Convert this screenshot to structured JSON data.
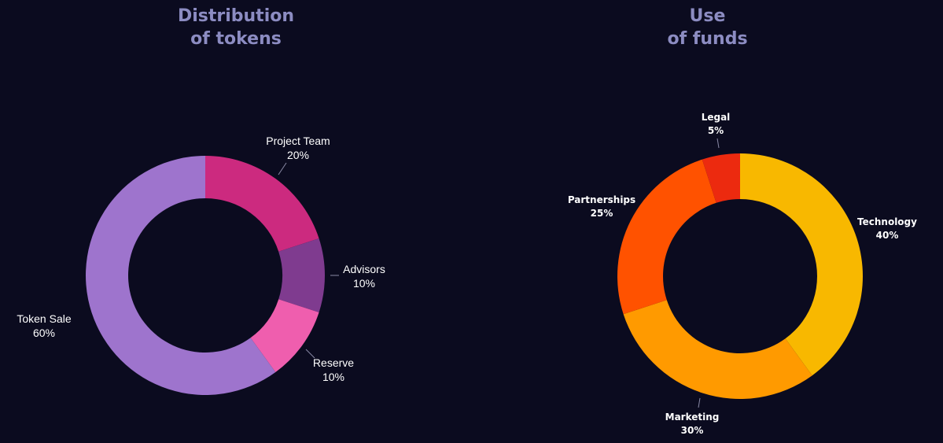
{
  "chart_data": [
    {
      "type": "pie",
      "title_lines": [
        "Distribution",
        "of tokens"
      ],
      "colors": {
        "Project Team": "#cc2a7f",
        "Advisors": "#7f3b8f",
        "Reserve": "#ef5eae",
        "Token Sale": "#9e74cd"
      },
      "slices": [
        {
          "label": "Project Team",
          "value_label": "20%",
          "value": 20
        },
        {
          "label": "Advisors",
          "value_label": "10%",
          "value": 10
        },
        {
          "label": "Reserve",
          "value_label": "10%",
          "value": 10
        },
        {
          "label": "Token Sale",
          "value_label": "60%",
          "value": 60
        }
      ]
    },
    {
      "type": "pie",
      "title_lines": [
        "Use",
        "of funds"
      ],
      "colors": {
        "Technology": "#f8b800",
        "Marketing": "#ff9a00",
        "Partnerships": "#ff5200",
        "Legal": "#ec2a0f"
      },
      "slices": [
        {
          "label": "Technology",
          "value_label": "40%",
          "value": 40
        },
        {
          "label": "Marketing",
          "value_label": "30%",
          "value": 30
        },
        {
          "label": "Partnerships",
          "value_label": "25%",
          "value": 25
        },
        {
          "label": "Legal",
          "value_label": "5%",
          "value": 5
        }
      ]
    }
  ]
}
